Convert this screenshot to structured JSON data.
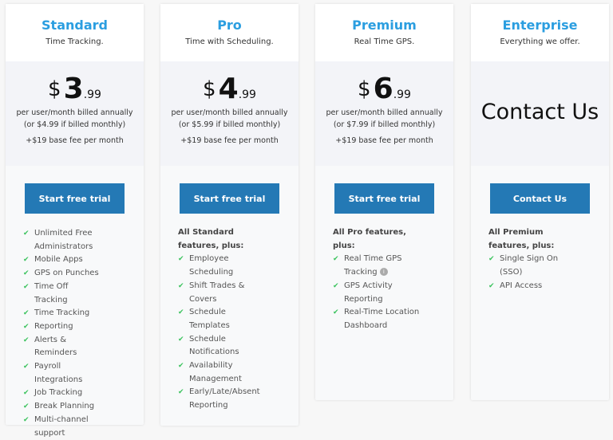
{
  "plans": [
    {
      "name": "Standard",
      "tagline": "Time Tracking.",
      "dollar": "$",
      "price": "3",
      "cents": ".99",
      "billing1": "per user/month billed annually",
      "billing2": "(or $4.99 if billed monthly)",
      "base": "+$19 base fee per month",
      "button": "Start free trial",
      "intro": "",
      "features": [
        "Unlimited Free Administrators",
        "Mobile Apps",
        "GPS on Punches",
        "Time Off Tracking",
        "Time Tracking",
        "Reporting",
        "Alerts & Reminders",
        "Payroll Integrations",
        "Job Tracking",
        "Break Planning",
        "Multi-channel support"
      ]
    },
    {
      "name": "Pro",
      "tagline": "Time with Scheduling.",
      "dollar": "$",
      "price": "4",
      "cents": ".99",
      "billing1": "per user/month billed annually",
      "billing2": "(or $5.99 if billed monthly)",
      "base": "+$19 base fee per month",
      "button": "Start free trial",
      "intro": "All Standard features, plus:",
      "features": [
        "Employee Scheduling",
        "Shift Trades & Covers",
        "Schedule Templates",
        "Schedule Notifications",
        "Availability Management",
        "Early/Late/Absent Reporting"
      ]
    },
    {
      "name": "Premium",
      "tagline": "Real Time GPS.",
      "dollar": "$",
      "price": "6",
      "cents": ".99",
      "billing1": "per user/month billed annually",
      "billing2": "(or $7.99 if billed monthly)",
      "base": "+$19 base fee per month",
      "button": "Start free trial",
      "intro": "All Pro features, plus:",
      "features": [
        "Real Time GPS Tracking",
        "GPS Activity Reporting",
        "Real-Time Location Dashboard"
      ]
    },
    {
      "name": "Enterprise",
      "tagline": "Everything we offer.",
      "contact": "Contact Us",
      "button": "Contact Us",
      "intro": "All Premium features, plus:",
      "features": [
        "Single Sign On (SSO)",
        "API Access"
      ]
    }
  ],
  "colors": {
    "accent": "#2b9ee0",
    "button": "#2479b5",
    "check": "#3cc35e"
  },
  "info_icon_on": "Real Time GPS Tracking"
}
